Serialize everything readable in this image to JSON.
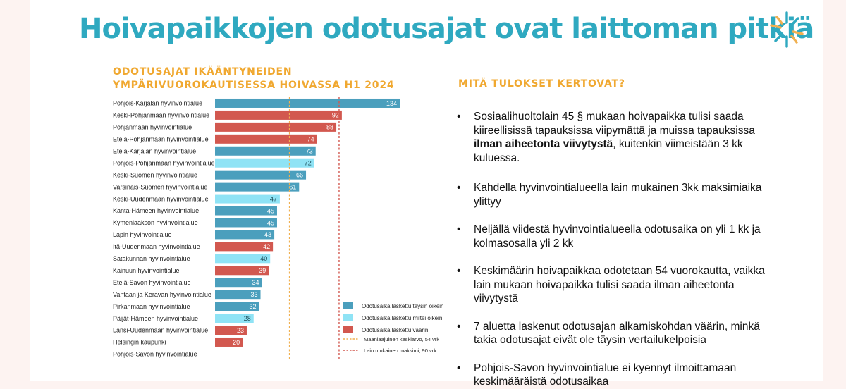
{
  "title": "Hoivapaikkojen odotusajat ovat laittoman pitkiä",
  "chart_title_line1": "ODOTUSAJAT IKÄÄNTYNEIDEN",
  "chart_title_line2": "YMPÄRIVUOROKAUTISESSA HOIVASSA H1 2024",
  "right_title": "MITÄ TULOKSET KERTOVAT?",
  "colors": {
    "title": "#2fa9c0",
    "heading": "#f0a830",
    "correct": "#4b9fbd",
    "almost": "#8fe3f5",
    "wrong": "#d2584f",
    "avg_line": "#f0b050",
    "max_line": "#d2584f"
  },
  "chart_data": {
    "type": "bar",
    "orientation": "horizontal",
    "title": "ODOTUSAJAT IKÄÄNTYNEIDEN YMPÄRIVUOROKAUTISESSA HOIVASSA H1 2024",
    "xlim": [
      0,
      134
    ],
    "grid": false,
    "legend_position": "bottom-right",
    "categories": [
      "Pohjois-Karjalan hyvinvointialue",
      "Keski-Pohjanmaan hyvinvointialue",
      "Pohjanmaan hyvinvointialue",
      "Etelä-Pohjanmaan hyvinvointialue",
      "Etelä-Karjalan hyvinvointialue",
      "Pohjois-Pohjanmaan hyvinvointialue",
      "Keski-Suomen hyvinvointialue",
      "Varsinais-Suomen hyvinvointialue",
      "Keski-Uudenmaan hyvinvointialue",
      "Kanta-Hämeen hyvinvointialue",
      "Kymenlaakson hyvinvointialue",
      "Lapin hyvinvointialue",
      "Itä-Uudenmaan hyvinvointialue",
      "Satakunnan hyvinvointialue",
      "Kainuun hyvinvointialue",
      "Etelä-Savon hyvinvointialue",
      "Vantaan ja Keravan hyvinvointialue",
      "Pirkanmaan hyvinvointialue",
      "Päijät-Hämeen hyvinvointialue",
      "Länsi-Uudenmaan hyvinvointialue",
      "Helsingin kaupunki",
      "Pohjois-Savon hyvinvointialue"
    ],
    "values": [
      134,
      92,
      88,
      74,
      73,
      72,
      66,
      61,
      47,
      45,
      45,
      43,
      42,
      40,
      39,
      34,
      33,
      32,
      28,
      23,
      20,
      null
    ],
    "status": [
      "correct",
      "wrong",
      "wrong",
      "wrong",
      "correct",
      "almost",
      "correct",
      "correct",
      "almost",
      "correct",
      "correct",
      "correct",
      "wrong",
      "almost",
      "wrong",
      "correct",
      "correct",
      "correct",
      "almost",
      "wrong",
      "wrong",
      "none"
    ],
    "legend": [
      {
        "key": "correct",
        "label": "Odotusaika laskettu täysin oikein"
      },
      {
        "key": "almost",
        "label": "Odotusaika laskettu miltei oikein"
      },
      {
        "key": "wrong",
        "label": "Odotusaika laskettu väärin"
      }
    ],
    "reference_lines": [
      {
        "key": "avg",
        "value": 54,
        "label": "Maanlaajuinen keskiarvo, 54 vrk"
      },
      {
        "key": "max",
        "value": 90,
        "label": "Lain mukainen maksimi, 90 vrk"
      }
    ]
  },
  "bullets": [
    {
      "pre": "Sosiaalihuoltolain 45 § mukaan hoivapaikka tulisi saada kiireellisissä tapauksissa viipymättä ja muissa tapauksissa",
      "bold": "ilman aiheetonta viivytystä",
      "post": ", kuitenkin viimeistään 3 kk kuluessa."
    },
    {
      "pre": "Kahdella hyvinvointialueella lain mukainen 3kk maksimiaika ylittyy",
      "bold": "",
      "post": ""
    },
    {
      "pre": "Neljällä viidestä hyvinvointialueella odotusaika on yli 1 kk ja kolmasosalla yli 2 kk",
      "bold": "",
      "post": ""
    },
    {
      "pre": "Keskimäärin hoivapaikkaa odotetaan 54 vuorokautta, vaikka lain mukaan hoivapaikka tulisi saada ilman aiheetonta viivytystä",
      "bold": "",
      "post": ""
    },
    {
      "pre": "7 aluetta laskenut odotusajan alkamiskohdan väärin, minkä takia odotusajat eivät ole täysin vertailukelpoisia",
      "bold": "",
      "post": ""
    },
    {
      "pre": "Pohjois-Savon hyvinvointialue ei kyennyt ilmoittamaan keskimääräistä odotusaikaa",
      "bold": "",
      "post": ""
    }
  ],
  "bullet_symbol": "•"
}
